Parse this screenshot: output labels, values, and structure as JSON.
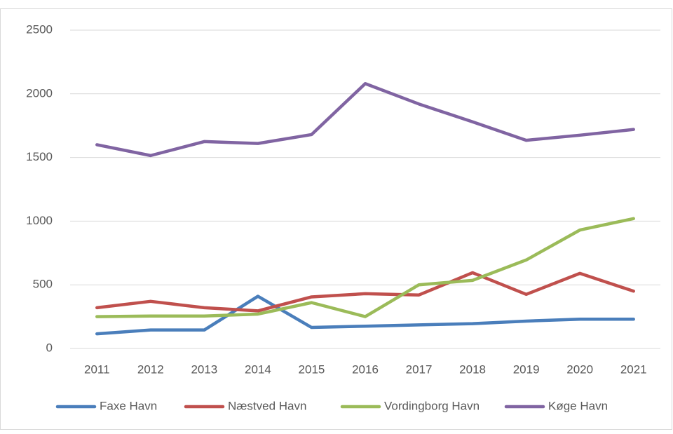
{
  "chart_data": {
    "type": "line",
    "categories": [
      "2011",
      "2012",
      "2013",
      "2014",
      "2015",
      "2016",
      "2017",
      "2018",
      "2019",
      "2020",
      "2021"
    ],
    "series": [
      {
        "name": "Faxe Havn",
        "color": "#4a7ebb",
        "values": [
          115,
          145,
          145,
          410,
          165,
          175,
          185,
          195,
          215,
          230,
          230
        ]
      },
      {
        "name": "Næstved Havn",
        "color": "#c0504d",
        "values": [
          320,
          370,
          320,
          295,
          405,
          430,
          420,
          595,
          425,
          590,
          450
        ]
      },
      {
        "name": "Vordingborg Havn",
        "color": "#9bbb59",
        "values": [
          250,
          255,
          255,
          270,
          360,
          250,
          500,
          535,
          695,
          930,
          1020
        ]
      },
      {
        "name": "Køge Havn",
        "color": "#8064a2",
        "values": [
          1600,
          1515,
          1625,
          1610,
          1680,
          2080,
          1920,
          1780,
          1635,
          1675,
          1720
        ]
      }
    ],
    "ylim": [
      0,
      2500
    ],
    "yticks": [
      0,
      500,
      1000,
      1500,
      2000,
      2500
    ],
    "grid": true,
    "legend": "bottom"
  }
}
